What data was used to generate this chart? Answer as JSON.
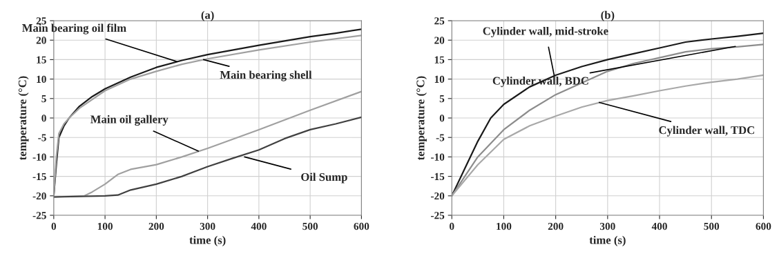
{
  "chart_data": [
    {
      "type": "line",
      "title": "(a)",
      "xlabel": "time (s)",
      "ylabel": "temperature (°C)",
      "xlim": [
        0,
        600
      ],
      "ylim": [
        -25,
        25
      ],
      "xticks": [
        0,
        100,
        200,
        300,
        400,
        500,
        600
      ],
      "yticks": [
        -25,
        -20,
        -15,
        -10,
        -5,
        0,
        5,
        10,
        15,
        20,
        25
      ],
      "grid": true,
      "legend": false,
      "series": [
        {
          "color": "#1a1a1a",
          "x": [
            0,
            5,
            10,
            20,
            30,
            50,
            75,
            100,
            150,
            200,
            250,
            300,
            350,
            400,
            450,
            500,
            550,
            600
          ],
          "values": [
            -20,
            -12,
            -5,
            -2,
            0,
            3,
            5.5,
            7.5,
            10.5,
            13,
            14.8,
            16.3,
            17.5,
            18.7,
            19.8,
            20.9,
            21.8,
            22.8
          ]
        },
        {
          "color": "#a0a0a0",
          "x": [
            0,
            5,
            10,
            20,
            30,
            50,
            100,
            150,
            200,
            250,
            300,
            400,
            500,
            600
          ],
          "values": [
            -20,
            -10,
            -4,
            -1.5,
            0,
            2.5,
            7,
            10,
            12,
            13.8,
            15.2,
            17.5,
            19.5,
            21.2
          ]
        },
        {
          "color": "#a0a0a0",
          "x": [
            0,
            60,
            75,
            100,
            125,
            150,
            200,
            250,
            300,
            400,
            500,
            600
          ],
          "values": [
            -20.3,
            -20,
            -19,
            -17,
            -14.5,
            -13.2,
            -12,
            -10,
            -7.8,
            -3,
            2,
            6.8
          ]
        },
        {
          "color": "#404040",
          "x": [
            0,
            100,
            125,
            150,
            200,
            250,
            300,
            350,
            400,
            450,
            500,
            550,
            600
          ],
          "values": [
            -20.3,
            -20,
            -19.8,
            -18.5,
            -17,
            -15,
            -12.5,
            -10.3,
            -8.2,
            -5.3,
            -3,
            -1.5,
            0.2
          ]
        }
      ],
      "annotations": [
        {
          "text": "Main bearing oil film",
          "x": 240,
          "y": 14.5
        },
        {
          "text": "Main bearing shell",
          "x": 292,
          "y": 15
        },
        {
          "text": "Main oil gallery",
          "x": 282,
          "y": -8.5
        },
        {
          "text": "Oil Sump",
          "x": 372,
          "y": -10
        }
      ]
    },
    {
      "type": "line",
      "title": "(b)",
      "xlabel": "time (s)",
      "ylabel": "temperature (°C)",
      "xlim": [
        0,
        600
      ],
      "ylim": [
        -25,
        25
      ],
      "xticks": [
        0,
        100,
        200,
        300,
        400,
        500,
        600
      ],
      "yticks": [
        -25,
        -20,
        -15,
        -10,
        -5,
        0,
        5,
        10,
        15,
        20,
        25
      ],
      "grid": true,
      "legend": false,
      "series": [
        {
          "color": "#1a1a1a",
          "x": [
            0,
            25,
            50,
            75,
            100,
            150,
            200,
            250,
            300,
            350,
            400,
            450,
            500,
            550,
            600
          ],
          "values": [
            -20,
            -13,
            -6,
            0,
            3.5,
            8,
            11,
            13.2,
            15,
            16.5,
            18,
            19.5,
            20.3,
            21,
            21.8
          ]
        },
        {
          "color": "#8c8c8c",
          "x": [
            0,
            50,
            100,
            150,
            200,
            250,
            300,
            350,
            400,
            450,
            500,
            550,
            600
          ],
          "values": [
            -20,
            -10,
            -3,
            2,
            6,
            9,
            12,
            14,
            15.5,
            17,
            17.8,
            18.3,
            18.9
          ]
        },
        {
          "color": "#a8a8a8",
          "x": [
            0,
            50,
            100,
            150,
            200,
            250,
            300,
            350,
            400,
            450,
            500,
            550,
            600
          ],
          "values": [
            -20,
            -12,
            -5.5,
            -2,
            0.5,
            2.8,
            4.5,
            5.7,
            7,
            8.2,
            9.2,
            10,
            11
          ]
        }
      ],
      "annotations": [
        {
          "text": "Cylinder wall, mid-stroke",
          "x": 197,
          "y": 11
        },
        {
          "text": "Cylinder wall, BDC",
          "x": 546,
          "y": 18.4
        },
        {
          "text": "Cylinder wall, TDC",
          "x": 284,
          "y": 4
        }
      ]
    }
  ]
}
